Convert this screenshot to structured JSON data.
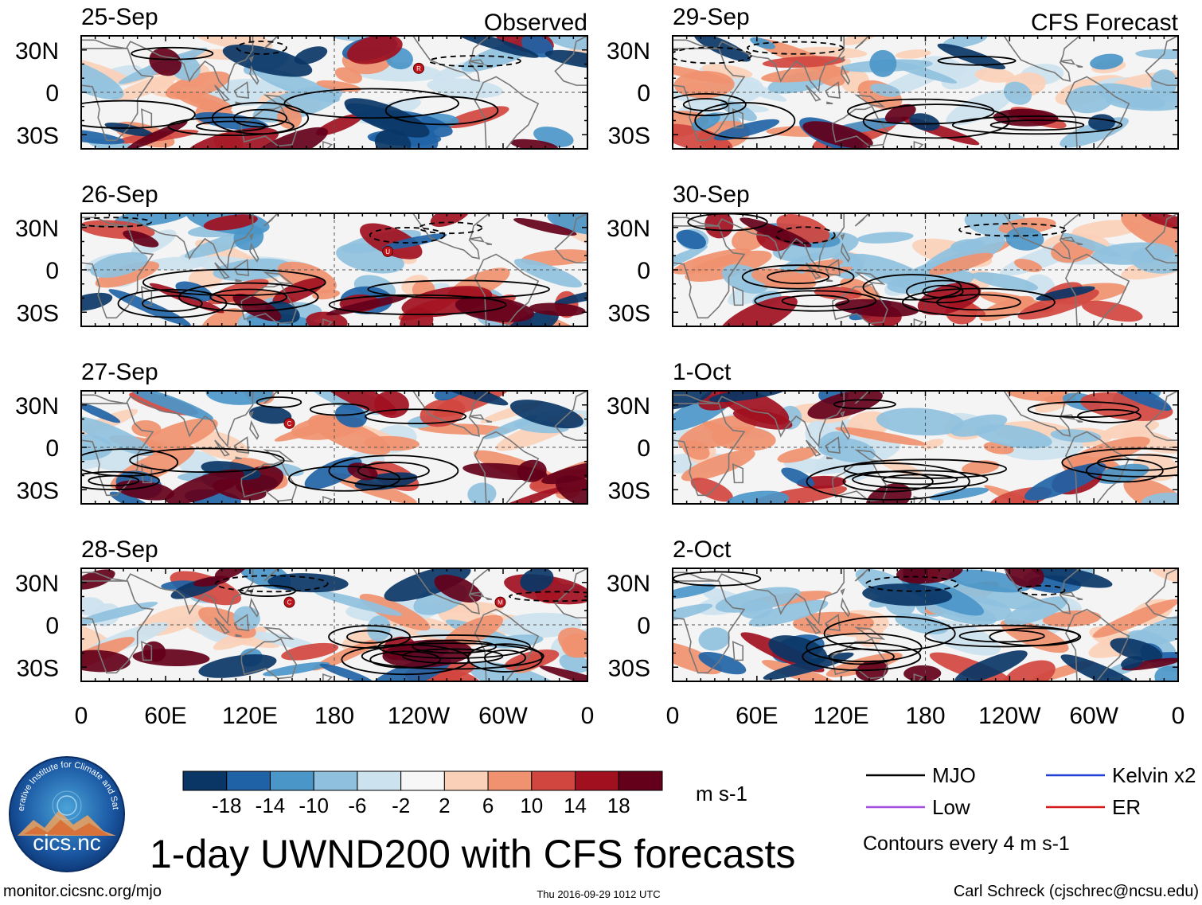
{
  "panels": [
    {
      "date": "25-Sep",
      "tag": "Observed",
      "markers": [
        {
          "label": "R",
          "lon": 240,
          "lat": 17
        }
      ]
    },
    {
      "date": "26-Sep",
      "tag": "",
      "markers": [
        {
          "label": "U",
          "lon": 218,
          "lat": 13
        }
      ]
    },
    {
      "date": "27-Sep",
      "tag": "",
      "markers": [
        {
          "label": "C",
          "lon": 148,
          "lat": 17
        }
      ]
    },
    {
      "date": "28-Sep",
      "tag": "",
      "markers": [
        {
          "label": "C",
          "lon": 148,
          "lat": 16
        },
        {
          "label": "M",
          "lon": 298,
          "lat": 16
        }
      ]
    },
    {
      "date": "29-Sep",
      "tag": "CFS Forecast",
      "markers": []
    },
    {
      "date": "30-Sep",
      "tag": "",
      "markers": []
    },
    {
      "date": "1-Oct",
      "tag": "",
      "markers": []
    },
    {
      "date": "2-Oct",
      "tag": "",
      "markers": []
    }
  ],
  "axes": {
    "lat_labels": [
      "30N",
      "0",
      "30S"
    ],
    "lon_labels": [
      "0",
      "60E",
      "120E",
      "180",
      "120W",
      "60W",
      "0"
    ],
    "lon_values": [
      0,
      60,
      120,
      180,
      240,
      300,
      360
    ],
    "lat_values": [
      30,
      0,
      -30
    ],
    "lat_range": [
      -40,
      40
    ],
    "lon_range": [
      0,
      360
    ]
  },
  "colorbar": {
    "ticks": [
      "-18",
      "-14",
      "-10",
      "-6",
      "-2",
      "2",
      "6",
      "10",
      "14",
      "18"
    ],
    "colors": [
      "#0a3666",
      "#1f63a6",
      "#4b96c8",
      "#8fc1de",
      "#cce2ef",
      "#f7f7f7",
      "#fbd0b9",
      "#f0916f",
      "#d1473f",
      "#a1101f",
      "#64001a"
    ],
    "units": "m s-1"
  },
  "legend": {
    "items": [
      {
        "label": "MJO",
        "color": "#000000"
      },
      {
        "label": "Kelvin x2",
        "color": "#1f3fd6"
      },
      {
        "label": "Low",
        "color": "#a64fe0"
      },
      {
        "label": "ER",
        "color": "#d61a1a"
      }
    ],
    "contour_note": "Contours every 4 m s-1"
  },
  "title": "1-day UWND200 with CFS forecasts",
  "footer": {
    "url": "monitor.cicsnc.org/mjo",
    "timestamp": "Thu 2016-09-29 1012 UTC",
    "author": "Carl Schreck (cjschrec@ncsu.edu)"
  },
  "logo": {
    "arc_text": "Cooperative Institute for Climate and Satellites",
    "name": "cics.nc"
  }
}
